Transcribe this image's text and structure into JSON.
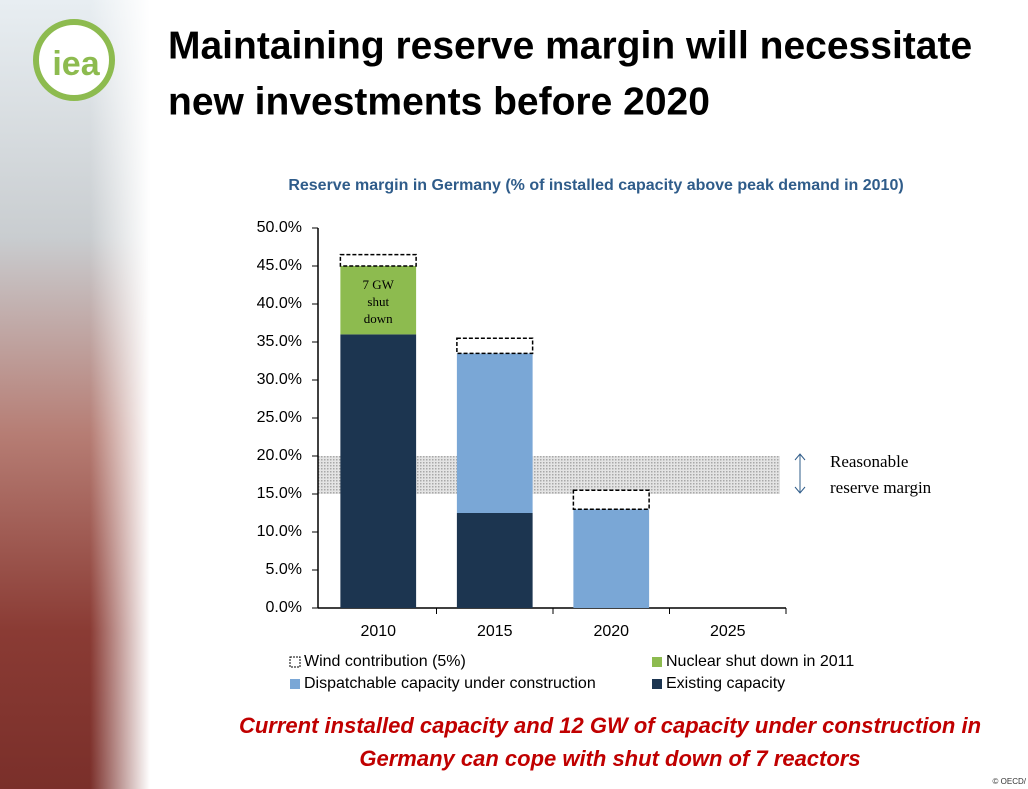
{
  "slide": {
    "logo": "iea",
    "title_lines": [
      "Maintaining reserve margin will necessitate",
      "new investments before 2020"
    ],
    "footer_lines": [
      "Current installed capacity and 12 GW of capacity under construction in",
      "Germany can cope with shut down of 7 reactors"
    ],
    "copyright": "© OECD/"
  },
  "chart_data": {
    "type": "stacked_bar",
    "title": "Reserve margin in Germany (% of installed capacity above peak demand in 2010)",
    "categories": [
      "2010",
      "2015",
      "2020",
      "2025"
    ],
    "series": [
      {
        "name": "Existing capacity",
        "color": "#1c3550",
        "values": [
          36,
          12.5,
          0,
          0
        ]
      },
      {
        "name": "Dispatchable capacity under construction",
        "color": "#7aa7d6",
        "values": [
          0,
          21,
          13,
          0
        ]
      },
      {
        "name": "Nuclear shut down in 2011",
        "color": "#8dbb4f",
        "values": [
          9,
          0,
          0,
          0
        ]
      },
      {
        "name": "Wind contribution (5%)",
        "color": "#ffffff",
        "values": [
          1.5,
          2,
          2.5,
          0
        ]
      }
    ],
    "ylim": [
      0,
      50
    ],
    "yticks": [
      {
        "value": 0,
        "label": "0.0%"
      },
      {
        "value": 5,
        "label": "5.0%"
      },
      {
        "value": 10,
        "label": "10.0%"
      },
      {
        "value": 15,
        "label": "15.0%"
      },
      {
        "value": 20,
        "label": "20.0%"
      },
      {
        "value": 25,
        "label": "25.0%"
      },
      {
        "value": 30,
        "label": "30.0%"
      },
      {
        "value": 35,
        "label": "35.0%"
      },
      {
        "value": 40,
        "label": "40.0%"
      },
      {
        "value": 45,
        "label": "45.0%"
      },
      {
        "value": 50,
        "label": "50.0%"
      }
    ],
    "band": {
      "range": [
        15,
        20
      ],
      "label_lines": [
        "Reasonable",
        "reserve margin"
      ]
    },
    "annotation_lines": [
      "7 GW",
      "shut",
      "down"
    ],
    "legend": "bottom"
  }
}
